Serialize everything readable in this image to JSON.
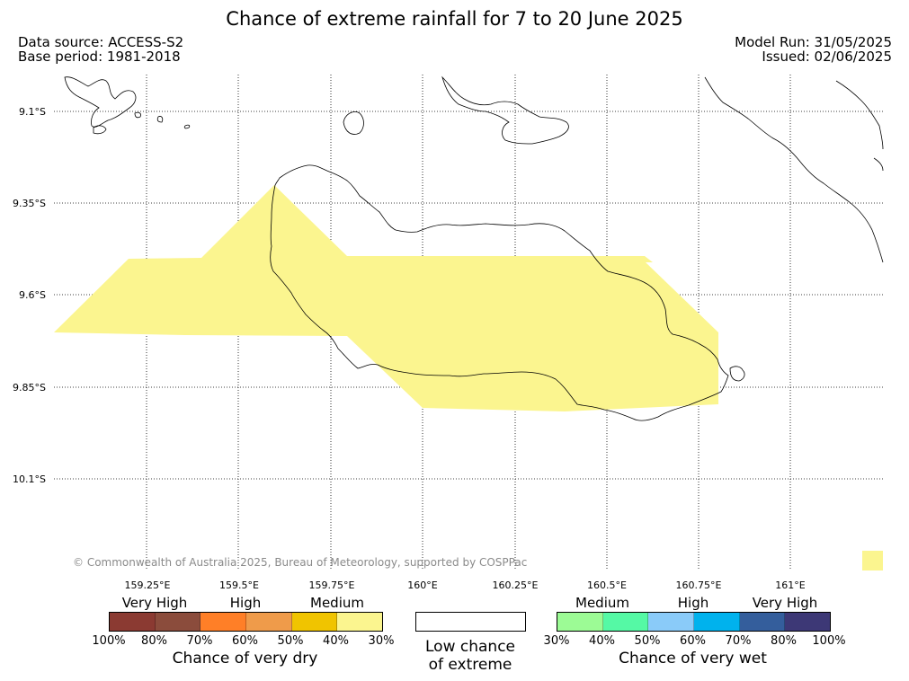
{
  "title": "Chance of extreme rainfall for 7 to 20 June 2025",
  "meta": {
    "data_source": "Data source: ACCESS-S2",
    "base_period": "Base period: 1981-2018",
    "model_run": "Model Run: 31/05/2025",
    "issued": "Issued: 02/06/2025"
  },
  "map": {
    "lat_labels": [
      "9.1°S",
      "9.35°S",
      "9.6°S",
      "9.85°S",
      "10.1°S"
    ],
    "lon_labels": [
      "159.25°E",
      "159.5°E",
      "159.75°E",
      "160°E",
      "160.25°E",
      "160.5°E",
      "160.75°E",
      "161°E"
    ],
    "credit": "© Commonwealth of Australia 2025, Bureau of Meteorology, supported by COSPPac",
    "highlight_category": "dry-medium-30-40",
    "highlight_color": "#fbf58f",
    "coast_color": "#000000",
    "grid_color": "#000000"
  },
  "legend": {
    "dry": {
      "categories": [
        "Very High",
        "High",
        "Medium"
      ],
      "colors": [
        "#8b3a32",
        "#8b4c3c",
        "#ff7f27",
        "#ef9b4a",
        "#f0c400",
        "#fbf58f"
      ],
      "ticks": [
        "100%",
        "80%",
        "70%",
        "60%",
        "50%",
        "40%",
        "30%"
      ],
      "caption": "Chance of very dry"
    },
    "low": {
      "caption_line1": "Low chance",
      "caption_line2": "of extreme",
      "color": "#ffffff"
    },
    "wet": {
      "categories": [
        "Medium",
        "High",
        "Very High"
      ],
      "colors": [
        "#9cfb95",
        "#55f9a5",
        "#8acbf9",
        "#00b2ed",
        "#345e9c",
        "#3d3876"
      ],
      "ticks": [
        "30%",
        "40%",
        "50%",
        "60%",
        "70%",
        "80%",
        "100%"
      ],
      "caption": "Chance of very wet"
    }
  }
}
